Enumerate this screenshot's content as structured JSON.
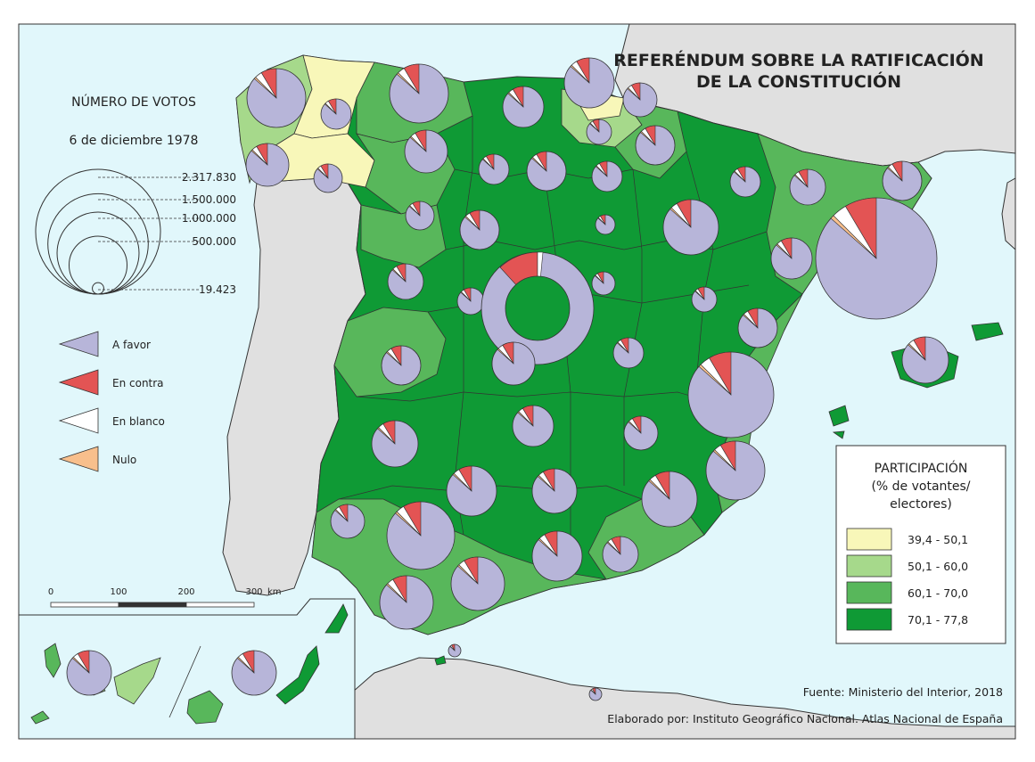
{
  "title": {
    "line1": "REFERÉNDUM SOBRE LA RATIFICACIÓN",
    "line2": "DE LA CONSTITUCIÓN"
  },
  "votes_legend": {
    "title": "NÚMERO DE VOTOS",
    "date": "6 de diciembre 1978",
    "circles": [
      {
        "label": "2.317.830",
        "votes": 2317830
      },
      {
        "label": "1.500.000",
        "votes": 1500000
      },
      {
        "label": "1.000.000",
        "votes": 1000000
      },
      {
        "label": "500.000",
        "votes": 500000
      },
      {
        "label": "19.423",
        "votes": 19423
      }
    ]
  },
  "pie_legend": [
    {
      "label": "A favor",
      "color": "#b7b5d9"
    },
    {
      "label": "En contra",
      "color": "#e35454"
    },
    {
      "label": "En blanco",
      "color": "#ffffff"
    },
    {
      "label": "Nulo",
      "color": "#f8bf8c"
    }
  ],
  "participation_legend": {
    "title_lines": [
      "PARTICIPACIÓN",
      "(% de votantes/",
      "electores)"
    ],
    "classes": [
      {
        "label": "39,4 - 50,1",
        "color": "#f8f7b9"
      },
      {
        "label": "50,1 - 60,0",
        "color": "#a6d98b"
      },
      {
        "label": "60,1 - 70,0",
        "color": "#58b75b"
      },
      {
        "label": "70,1 - 77,8",
        "color": "#0f9a35"
      }
    ]
  },
  "scale": {
    "ticks": [
      "0",
      "100",
      "200",
      "300"
    ],
    "unit": "km"
  },
  "source": "Fuente: Ministerio del Interior, 2018",
  "credit": "Elaborado por: Instituto Geográfico Nacional. Atlas Nacional de España",
  "colors": {
    "sea": "#e1f7fb",
    "land": "#e0e0e0",
    "border": "#333333"
  }
}
